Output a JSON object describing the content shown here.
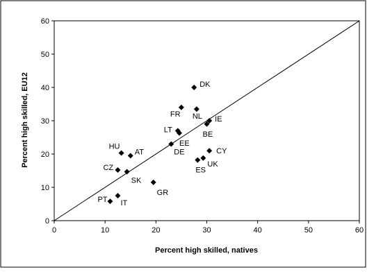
{
  "chart_data": {
    "type": "scatter",
    "title": "",
    "xlabel": "Percent high skilled, natives",
    "ylabel": "Percent high skilled, EU12",
    "xlim": [
      0,
      60
    ],
    "ylim": [
      0,
      60
    ],
    "x_ticks": [
      "0",
      "10",
      "20",
      "30",
      "40",
      "50",
      "60"
    ],
    "y_ticks": [
      "0",
      "10",
      "20",
      "30",
      "40",
      "50",
      "60"
    ],
    "grid": false,
    "legend": "none",
    "reference_line": {
      "type": "diagonal",
      "from": [
        0,
        0
      ],
      "to": [
        60,
        60
      ]
    },
    "marker": "diamond",
    "marker_color": "#000000",
    "points": [
      {
        "label": "DK",
        "x": 27.5,
        "y": 40.0
      },
      {
        "label": "FR",
        "x": 25.0,
        "y": 34.0
      },
      {
        "label": "NL",
        "x": 28.0,
        "y": 33.5
      },
      {
        "label": "IE",
        "x": 30.5,
        "y": 30.0
      },
      {
        "label": "BE",
        "x": 30.0,
        "y": 29.0
      },
      {
        "label": "LT",
        "x": 24.3,
        "y": 27.0
      },
      {
        "label": "EE",
        "x": 24.6,
        "y": 26.3
      },
      {
        "label": "DE",
        "x": 23.0,
        "y": 23.0
      },
      {
        "label": "CY",
        "x": 30.5,
        "y": 21.0
      },
      {
        "label": "UK",
        "x": 29.3,
        "y": 18.8
      },
      {
        "label": "ES",
        "x": 28.2,
        "y": 18.2
      },
      {
        "label": "HU",
        "x": 13.2,
        "y": 20.3
      },
      {
        "label": "AT",
        "x": 15.0,
        "y": 19.5
      },
      {
        "label": "CZ",
        "x": 12.5,
        "y": 15.2
      },
      {
        "label": "SK",
        "x": 14.3,
        "y": 14.7
      },
      {
        "label": "GR",
        "x": 19.5,
        "y": 11.5
      },
      {
        "label": "PT",
        "x": 11.0,
        "y": 5.8
      },
      {
        "label": "IT",
        "x": 12.5,
        "y": 7.5
      }
    ]
  }
}
